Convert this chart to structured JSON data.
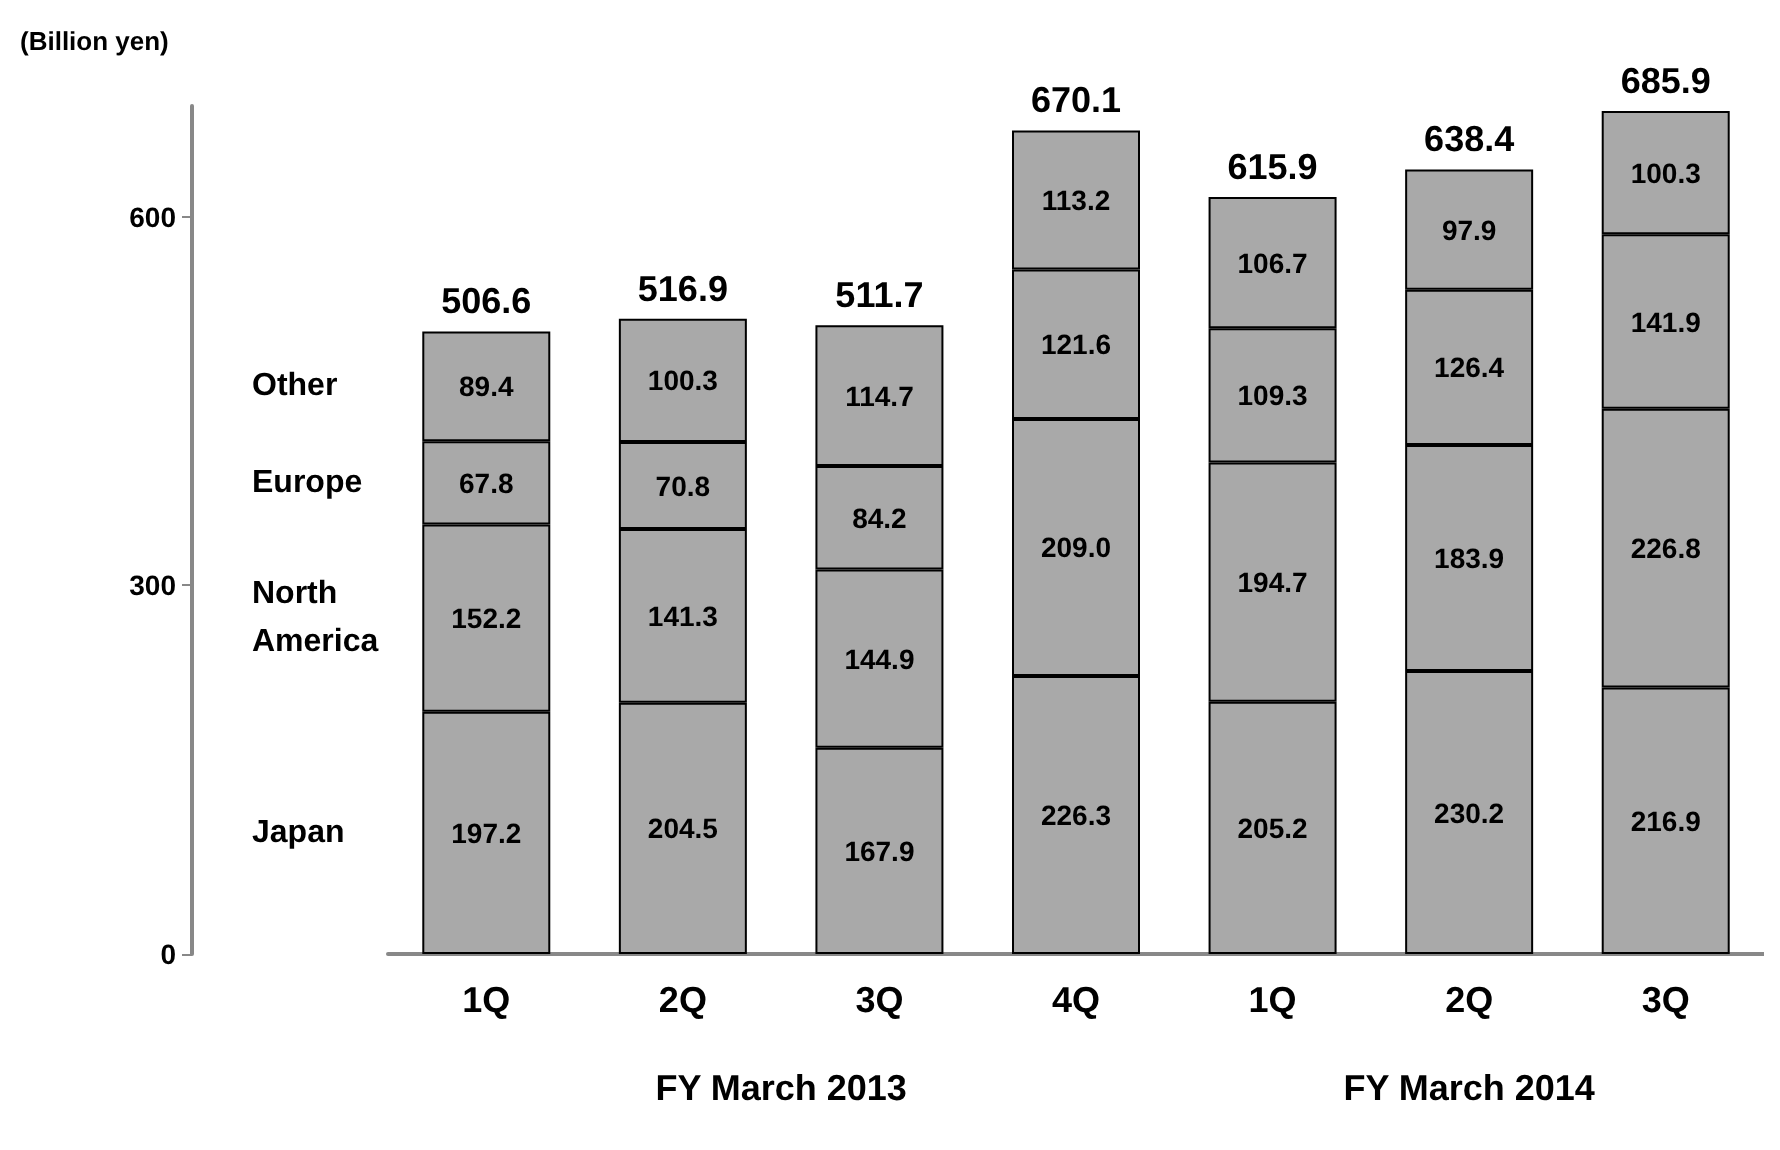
{
  "chart_data": {
    "type": "bar",
    "stacked": true,
    "ylabel": "(Billion yen)",
    "categories": [
      "1Q",
      "2Q",
      "3Q",
      "4Q",
      "1Q",
      "2Q",
      "3Q"
    ],
    "series": [
      {
        "name": "Japan",
        "color": "#a9a9a9",
        "values": [
          197.2,
          204.5,
          167.9,
          226.3,
          205.2,
          230.2,
          216.9
        ],
        "value_labels": [
          "197.2",
          "204.5",
          "167.9",
          "226.3",
          "205.2",
          "230.2",
          "216.9"
        ]
      },
      {
        "name": "North America",
        "color": "#a9a9a9",
        "values": [
          152.2,
          141.3,
          144.9,
          209.0,
          194.7,
          183.9,
          226.8
        ],
        "value_labels": [
          "152.2",
          "141.3",
          "144.9",
          "209.0",
          "194.7",
          "183.9",
          "226.8"
        ]
      },
      {
        "name": "Europe",
        "color": "#a9a9a9",
        "values": [
          67.8,
          70.8,
          84.2,
          121.6,
          109.3,
          126.4,
          141.9
        ],
        "value_labels": [
          "67.8",
          "70.8",
          "84.2",
          "121.6",
          "109.3",
          "126.4",
          "141.9"
        ]
      },
      {
        "name": "Other",
        "color": "#a9a9a9",
        "values": [
          89.4,
          100.3,
          114.7,
          113.2,
          106.7,
          97.9,
          100.3
        ],
        "value_labels": [
          "89.4",
          "100.3",
          "114.7",
          "113.2",
          "106.7",
          "97.9",
          "100.3"
        ]
      }
    ],
    "totals": [
      "506.6",
      "516.9",
      "511.7",
      "670.1",
      "615.9",
      "638.4",
      "685.9"
    ],
    "ylim": [
      0,
      690
    ],
    "yticks": [
      0,
      300,
      600
    ],
    "grid": false,
    "legend": false,
    "annotations": [
      "FY March 2013",
      "FY March 2014"
    ]
  }
}
